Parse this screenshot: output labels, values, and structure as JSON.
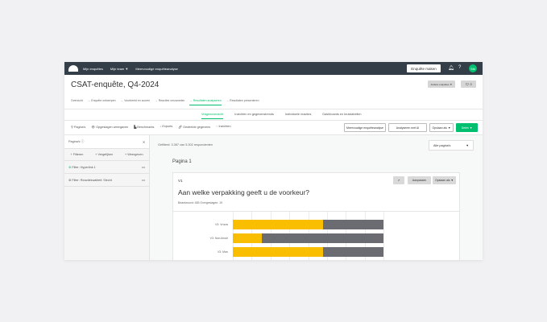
{
  "nav": {
    "items": [
      "Mijn enquêtes",
      "Mijn team ▼",
      "Meervoudige enquêteanalyse"
    ],
    "create": "Enquête maken",
    "avatar": "SM"
  },
  "header": {
    "title": "CSAT-enquête, Q4-2024",
    "other_surveys": "Andere enquêtes ▼",
    "comments": "0"
  },
  "steps": [
    "Overzicht",
    "→ Enquête ontwerpen",
    "→ Voorbeeld en scoren",
    "→ Reacties verzamelen",
    "→ Resultaten analyseren",
    "→ Resultaten presenteren"
  ],
  "tabs": [
    "Vragenoverzicht",
    "Inzichten en gegevenstrends",
    "Individuele reacties",
    "Dashboards en kruistabellen"
  ],
  "toolbar": {
    "items": [
      "Pagina's",
      "Opgeslagen weergaven",
      "Benchmarks",
      "Exports",
      "Gedeelde gegevens",
      "Inzichten"
    ],
    "multi": "Meervoudige enquêteanalyse",
    "ai": "Analyseren met AI",
    "save_as": "Opslaan als ▼",
    "share": "Delen ▼"
  },
  "sidebar": {
    "title": "Pagina's",
    "actions": [
      "+ Filteren",
      "+ Vergelijken",
      "+ Weergeven"
    ],
    "filters": [
      "Filter: Hyperlink 1",
      "Filter: Reactiekwaliteit: Slecht"
    ]
  },
  "main": {
    "filtered": "Gefilterd: 3.387 van 5.302 respondenten",
    "page_select": "Alle pagina's",
    "page_title": "Pagina 1"
  },
  "card": {
    "qnum": "V1",
    "question": "Aan welke verpakking geeft u de voorkeur?",
    "counts": "Beantwoord: 483   Overgeslagen: 19",
    "customize": "Aanpassen",
    "save_as": "Opslaan als ▼"
  },
  "chart_data": {
    "type": "bar",
    "orientation": "horizontal",
    "stacked": true,
    "categories": [
      "V3: Vrouw",
      "V3: Non-binair",
      "V3: Man"
    ],
    "series": [
      {
        "values": [
          60,
          19,
          60
        ],
        "color": "#f9be00"
      },
      {
        "values": [
          40,
          81,
          40
        ],
        "color": "#6b6c72"
      }
    ],
    "xlim": [
      0,
      100
    ]
  }
}
